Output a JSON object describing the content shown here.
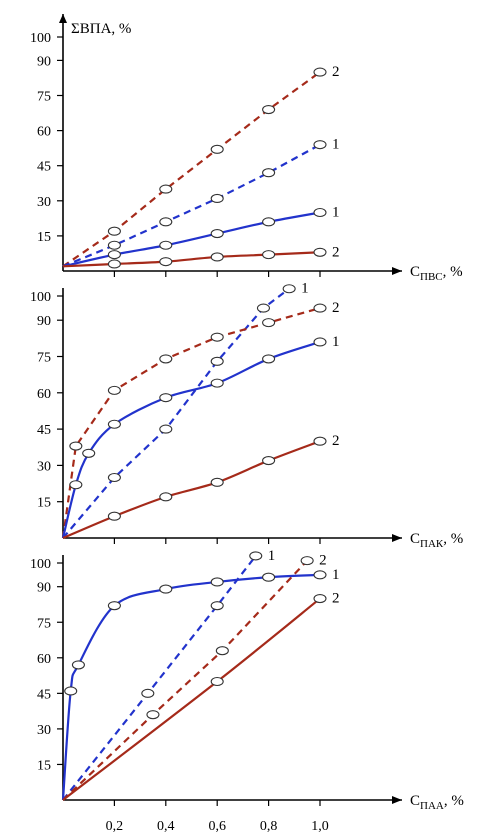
{
  "chart_data": [
    {
      "type": "line",
      "ylabel": "ΣВПА, %",
      "xlabel_base": "C",
      "xlabel_sub": "ПВС",
      "xlabel_unit": ", %",
      "xlim": [
        0,
        1.0
      ],
      "ylim": [
        0,
        100
      ],
      "yticks": [
        "15",
        "30",
        "45",
        "60",
        "75",
        "90",
        "100"
      ],
      "xticks": [],
      "series": [
        {
          "name": "2",
          "color": "#a52a1a",
          "dash": true,
          "markers": true,
          "x": [
            0,
            0.2,
            0.4,
            0.6,
            0.8,
            1.0
          ],
          "y": [
            2,
            17,
            35,
            52,
            69,
            85
          ]
        },
        {
          "name": "1",
          "color": "#2233cc",
          "dash": true,
          "markers": true,
          "x": [
            0,
            0.2,
            0.4,
            0.6,
            0.8,
            1.0
          ],
          "y": [
            2,
            11,
            21,
            31,
            42,
            54
          ]
        },
        {
          "name": "1",
          "color": "#2233cc",
          "dash": false,
          "markers": true,
          "x": [
            0,
            0.2,
            0.4,
            0.6,
            0.8,
            1.0
          ],
          "y": [
            2,
            7,
            11,
            16,
            21,
            25
          ]
        },
        {
          "name": "2",
          "color": "#a52a1a",
          "dash": false,
          "markers": true,
          "x": [
            0,
            0.2,
            0.4,
            0.6,
            0.8,
            1.0
          ],
          "y": [
            2,
            3,
            4,
            6,
            7,
            8
          ]
        }
      ]
    },
    {
      "type": "line",
      "ylabel": "",
      "xlabel_base": "C",
      "xlabel_sub": "ПАК",
      "xlabel_unit": ", %",
      "xlim": [
        0,
        1.0
      ],
      "ylim": [
        0,
        100
      ],
      "yticks": [
        "15",
        "30",
        "45",
        "60",
        "75",
        "90",
        "100"
      ],
      "xticks": [],
      "series": [
        {
          "name": "1",
          "color": "#2233cc",
          "dash": true,
          "markers": true,
          "x": [
            0,
            0.2,
            0.4,
            0.6,
            0.78,
            0.88
          ],
          "y": [
            0,
            25,
            45,
            73,
            95,
            103
          ]
        },
        {
          "name": "2",
          "color": "#a52a1a",
          "dash": true,
          "markers": true,
          "x": [
            0,
            0.05,
            0.2,
            0.4,
            0.6,
            0.8,
            1.0
          ],
          "y": [
            0,
            38,
            61,
            74,
            83,
            89,
            95
          ]
        },
        {
          "name": "1",
          "color": "#2233cc",
          "dash": false,
          "markers": true,
          "x": [
            0,
            0.05,
            0.1,
            0.2,
            0.4,
            0.6,
            0.8,
            1.0
          ],
          "y": [
            0,
            22,
            35,
            47,
            58,
            64,
            74,
            81
          ]
        },
        {
          "name": "2",
          "color": "#a52a1a",
          "dash": false,
          "markers": true,
          "x": [
            0,
            0.2,
            0.4,
            0.6,
            0.8,
            1.0
          ],
          "y": [
            0,
            9,
            17,
            23,
            32,
            40
          ]
        }
      ]
    },
    {
      "type": "line",
      "ylabel": "",
      "xlabel_base": "C",
      "xlabel_sub": "ПАА",
      "xlabel_unit": ", %",
      "xlim": [
        0,
        1.0
      ],
      "ylim": [
        0,
        100
      ],
      "yticks": [
        "15",
        "30",
        "45",
        "60",
        "75",
        "90",
        "100"
      ],
      "xticks": [
        "0,2",
        "0,4",
        "0,6",
        "0,8",
        "1,0"
      ],
      "series": [
        {
          "name": "1",
          "color": "#2233cc",
          "dash": true,
          "markers": true,
          "x": [
            0,
            0.33,
            0.6,
            0.75
          ],
          "y": [
            0,
            45,
            82,
            103
          ]
        },
        {
          "name": "2",
          "color": "#a52a1a",
          "dash": true,
          "markers": true,
          "x": [
            0,
            0.35,
            0.62,
            0.95
          ],
          "y": [
            0,
            36,
            63,
            101
          ]
        },
        {
          "name": "1",
          "color": "#2233cc",
          "dash": false,
          "markers": true,
          "x": [
            0,
            0.03,
            0.06,
            0.2,
            0.4,
            0.6,
            0.8,
            1.0
          ],
          "y": [
            0,
            46,
            57,
            82,
            89,
            92,
            94,
            95
          ]
        },
        {
          "name": "2",
          "color": "#a52a1a",
          "dash": false,
          "markers": true,
          "x": [
            0,
            0.6,
            1.0
          ],
          "y": [
            0,
            50,
            85
          ]
        }
      ]
    }
  ]
}
